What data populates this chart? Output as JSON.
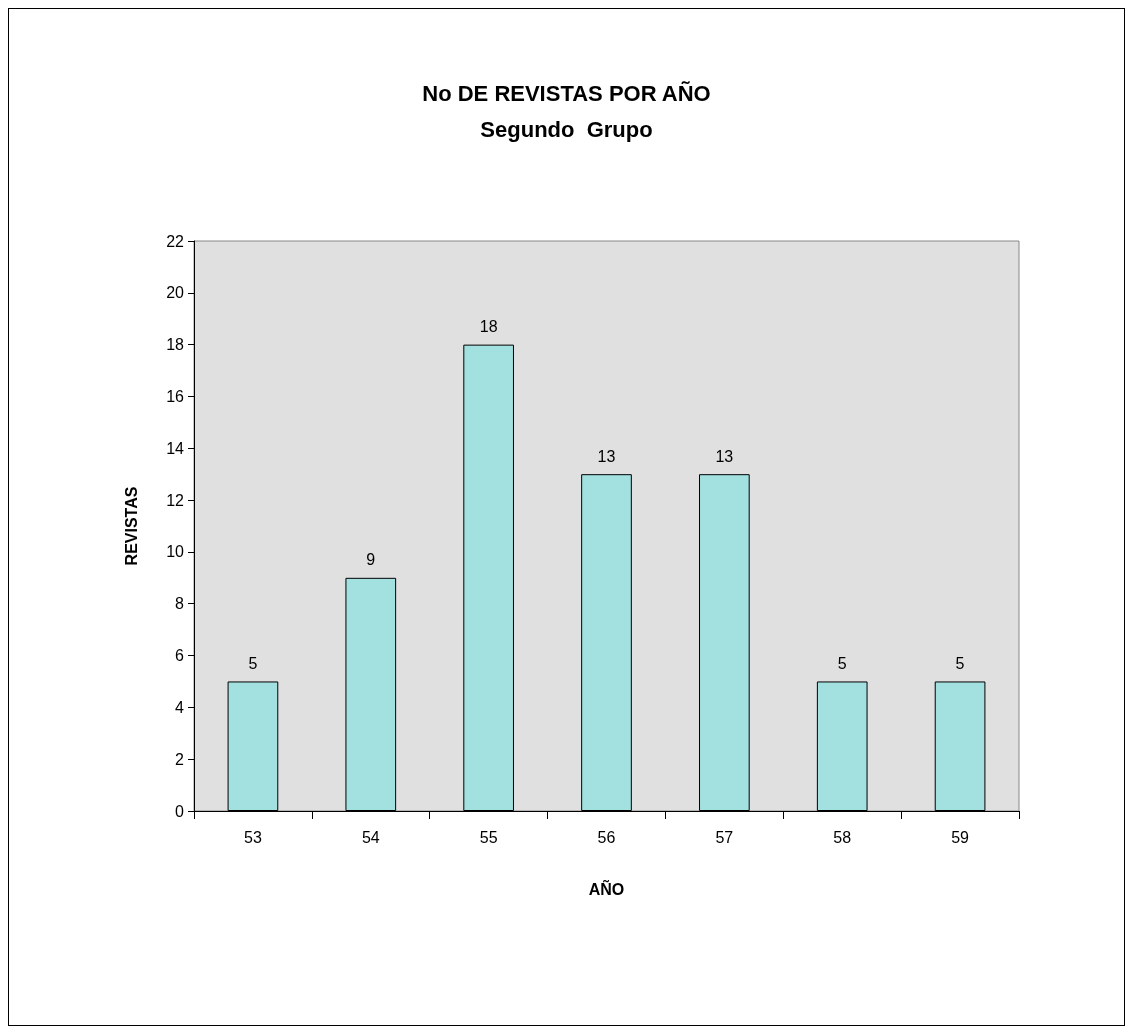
{
  "chart_data": {
    "type": "bar",
    "title": "No DE REVISTAS POR AÑO",
    "subtitle": "Segundo  Grupo",
    "xlabel": "AÑO",
    "ylabel": "REVISTAS",
    "categories": [
      "53",
      "54",
      "55",
      "56",
      "57",
      "58",
      "59"
    ],
    "values": [
      5,
      9,
      18,
      13,
      13,
      5,
      5
    ],
    "color": "#a3e0e0",
    "ylim": [
      0,
      22
    ],
    "yticks": [
      0,
      2,
      4,
      6,
      8,
      10,
      12,
      14,
      16,
      18,
      20,
      22
    ],
    "data_labels": true
  }
}
